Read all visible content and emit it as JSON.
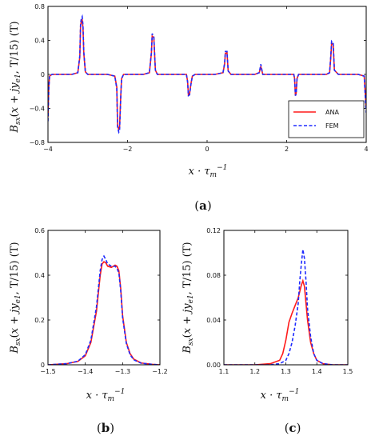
{
  "colors": {
    "ana": "#ff1a1a",
    "fem": "#1f2bff",
    "axis": "#000000"
  },
  "chart_data": [
    {
      "id": "a",
      "type": "line",
      "panel_label": "a",
      "xlabel": "x · τ_m^−1",
      "ylabel": "B_sx(x + jy_e1, T/15) (T)",
      "xlim": [
        -4,
        4
      ],
      "ylim": [
        -0.8,
        0.8
      ],
      "xticks": [
        -4,
        -2,
        0,
        2,
        4
      ],
      "xtick_labels": [
        "−4",
        "−2",
        "0",
        "2",
        "4"
      ],
      "yticks": [
        -0.8,
        -0.4,
        0,
        0.4,
        0.8
      ],
      "ytick_labels": [
        "−0.8",
        "−0.4",
        "0",
        "0.4",
        "0.8"
      ],
      "legend": {
        "position": "bottom-right",
        "entries": [
          "ANA",
          "FEM"
        ]
      },
      "series": [
        {
          "name": "ANA",
          "style": "solid",
          "x": [
            -4,
            -3.98,
            -3.96,
            -3.9,
            -3.4,
            -3.25,
            -3.2,
            -3.18,
            -3.16,
            -3.14,
            -3.12,
            -3.1,
            -3.06,
            -3.0,
            -2.5,
            -2.32,
            -2.27,
            -2.25,
            -2.22,
            -2.2,
            -2.17,
            -2.15,
            -2.1,
            -2.0,
            -1.6,
            -1.45,
            -1.4,
            -1.38,
            -1.36,
            -1.34,
            -1.3,
            -1.25,
            -1.0,
            -0.52,
            -0.49,
            -0.47,
            -0.44,
            -0.41,
            -0.37,
            -0.3,
            0.2,
            0.4,
            0.44,
            0.46,
            0.48,
            0.5,
            0.53,
            0.6,
            1.2,
            1.31,
            1.34,
            1.35,
            1.37,
            1.4,
            1.5,
            2.0,
            2.18,
            2.2,
            2.22,
            2.24,
            2.26,
            2.3,
            2.5,
            3.0,
            3.08,
            3.11,
            3.13,
            3.15,
            3.17,
            3.2,
            3.3,
            3.8,
            3.95,
            3.98,
            4
          ],
          "y": [
            -0.5,
            -0.15,
            -0.02,
            0,
            0,
            0.02,
            0.2,
            0.58,
            0.62,
            0.64,
            0.55,
            0.25,
            0.03,
            0,
            0,
            -0.02,
            -0.15,
            -0.6,
            -0.65,
            -0.62,
            -0.25,
            -0.05,
            0,
            0,
            0,
            0.02,
            0.25,
            0.45,
            0.44,
            0.44,
            0.05,
            0,
            0,
            0,
            -0.08,
            -0.24,
            -0.23,
            -0.12,
            -0.02,
            0,
            0,
            0.02,
            0.12,
            0.25,
            0.25,
            0.26,
            0.04,
            0,
            0,
            0.02,
            0.07,
            0.09,
            0.06,
            0,
            0,
            0,
            0,
            -0.05,
            -0.25,
            -0.22,
            -0.05,
            0,
            0,
            0,
            0.02,
            0.2,
            0.37,
            0.36,
            0.35,
            0.05,
            0,
            0,
            -0.02,
            -0.25,
            -0.4
          ]
        },
        {
          "name": "FEM",
          "style": "dashed",
          "x": [
            -4,
            -3.98,
            -3.96,
            -3.9,
            -3.4,
            -3.25,
            -3.2,
            -3.18,
            -3.16,
            -3.14,
            -3.12,
            -3.1,
            -3.06,
            -3.0,
            -2.5,
            -2.32,
            -2.27,
            -2.25,
            -2.22,
            -2.2,
            -2.17,
            -2.15,
            -2.1,
            -2.0,
            -1.6,
            -1.45,
            -1.4,
            -1.38,
            -1.36,
            -1.34,
            -1.3,
            -1.25,
            -1.0,
            -0.52,
            -0.49,
            -0.47,
            -0.44,
            -0.41,
            -0.37,
            -0.3,
            0.2,
            0.4,
            0.44,
            0.46,
            0.48,
            0.5,
            0.53,
            0.6,
            1.2,
            1.31,
            1.34,
            1.35,
            1.37,
            1.4,
            1.5,
            2.0,
            2.18,
            2.2,
            2.22,
            2.24,
            2.26,
            2.3,
            2.5,
            3.0,
            3.08,
            3.11,
            3.13,
            3.15,
            3.17,
            3.2,
            3.3,
            3.8,
            3.95,
            3.98,
            4
          ],
          "y": [
            -0.55,
            -0.18,
            -0.02,
            0,
            0,
            0.02,
            0.22,
            0.6,
            0.66,
            0.68,
            0.58,
            0.27,
            0.03,
            0,
            0,
            -0.02,
            -0.17,
            -0.62,
            -0.68,
            -0.66,
            -0.27,
            -0.05,
            0,
            0,
            0,
            0.02,
            0.26,
            0.48,
            0.46,
            0.45,
            0.05,
            0,
            0,
            0,
            -0.09,
            -0.25,
            -0.24,
            -0.13,
            -0.02,
            0,
            0,
            0.02,
            0.13,
            0.27,
            0.27,
            0.27,
            0.04,
            0,
            0,
            0.02,
            0.09,
            0.12,
            0.07,
            0,
            0,
            0,
            0,
            -0.05,
            -0.25,
            -0.23,
            -0.05,
            0,
            0,
            0,
            0.02,
            0.22,
            0.39,
            0.38,
            0.37,
            0.05,
            0,
            0,
            -0.02,
            -0.3,
            -0.45
          ]
        }
      ]
    },
    {
      "id": "b",
      "type": "line",
      "panel_label": "b",
      "xlabel": "x · τ_m^−1",
      "ylabel": "B_sx(x + jy_e1, T/15) (T)",
      "xlim": [
        -1.5,
        -1.2
      ],
      "ylim": [
        0,
        0.6
      ],
      "xticks": [
        -1.5,
        -1.4,
        -1.3,
        -1.2
      ],
      "xtick_labels": [
        "−1.5",
        "−1.4",
        "−1.3",
        "−1.2"
      ],
      "yticks": [
        0,
        0.2,
        0.4,
        0.6
      ],
      "ytick_labels": [
        "0",
        "0.2",
        "0.4",
        "0.6"
      ],
      "series": [
        {
          "name": "ANA",
          "style": "solid",
          "x": [
            -1.5,
            -1.45,
            -1.42,
            -1.4,
            -1.385,
            -1.37,
            -1.36,
            -1.355,
            -1.35,
            -1.345,
            -1.34,
            -1.33,
            -1.32,
            -1.315,
            -1.31,
            -1.305,
            -1.3,
            -1.29,
            -1.28,
            -1.27,
            -1.25,
            -1.22,
            -1.2
          ],
          "y": [
            0.0,
            0.005,
            0.015,
            0.04,
            0.1,
            0.24,
            0.4,
            0.45,
            0.46,
            0.455,
            0.44,
            0.435,
            0.445,
            0.44,
            0.42,
            0.34,
            0.22,
            0.1,
            0.05,
            0.025,
            0.008,
            0.002,
            0.0
          ]
        },
        {
          "name": "FEM",
          "style": "dashed",
          "x": [
            -1.5,
            -1.45,
            -1.42,
            -1.4,
            -1.385,
            -1.37,
            -1.36,
            -1.355,
            -1.35,
            -1.345,
            -1.34,
            -1.33,
            -1.32,
            -1.315,
            -1.31,
            -1.305,
            -1.3,
            -1.29,
            -1.28,
            -1.27,
            -1.25,
            -1.22,
            -1.2
          ],
          "y": [
            0.0,
            0.005,
            0.016,
            0.045,
            0.11,
            0.26,
            0.42,
            0.47,
            0.485,
            0.47,
            0.45,
            0.44,
            0.44,
            0.43,
            0.41,
            0.33,
            0.21,
            0.095,
            0.045,
            0.022,
            0.007,
            0.002,
            0.0
          ]
        }
      ]
    },
    {
      "id": "c",
      "type": "line",
      "panel_label": "c",
      "xlabel": "x · τ_m^−1",
      "ylabel": "B_sx(x + jy_e1, T/15) (T)",
      "xlim": [
        1.1,
        1.5
      ],
      "ylim": [
        0,
        0.12
      ],
      "xticks": [
        1.1,
        1.2,
        1.3,
        1.4,
        1.5
      ],
      "xtick_labels": [
        "1.1",
        "1.2",
        "1.3",
        "1.4",
        "1.5"
      ],
      "yticks": [
        0,
        0.04,
        0.08,
        0.12
      ],
      "ytick_labels": [
        "0.00",
        "0.04",
        "0.08",
        "0.12"
      ],
      "series": [
        {
          "name": "ANA",
          "style": "solid",
          "x": [
            1.1,
            1.2,
            1.25,
            1.28,
            1.29,
            1.3,
            1.31,
            1.32,
            1.33,
            1.34,
            1.35,
            1.355,
            1.36,
            1.365,
            1.37,
            1.38,
            1.39,
            1.4,
            1.42,
            1.45,
            1.5
          ],
          "y": [
            0,
            0,
            0.001,
            0.004,
            0.01,
            0.022,
            0.038,
            0.046,
            0.053,
            0.06,
            0.071,
            0.075,
            0.07,
            0.055,
            0.04,
            0.02,
            0.01,
            0.004,
            0.001,
            0,
            0
          ]
        },
        {
          "name": "FEM",
          "style": "dashed",
          "x": [
            1.1,
            1.2,
            1.25,
            1.28,
            1.3,
            1.31,
            1.32,
            1.33,
            1.34,
            1.345,
            1.35,
            1.355,
            1.36,
            1.365,
            1.37,
            1.38,
            1.39,
            1.4,
            1.42,
            1.45,
            1.5
          ],
          "y": [
            0,
            0,
            0,
            0.001,
            0.004,
            0.01,
            0.02,
            0.035,
            0.055,
            0.075,
            0.09,
            0.103,
            0.095,
            0.075,
            0.05,
            0.025,
            0.01,
            0.004,
            0.001,
            0,
            0
          ]
        }
      ]
    }
  ]
}
